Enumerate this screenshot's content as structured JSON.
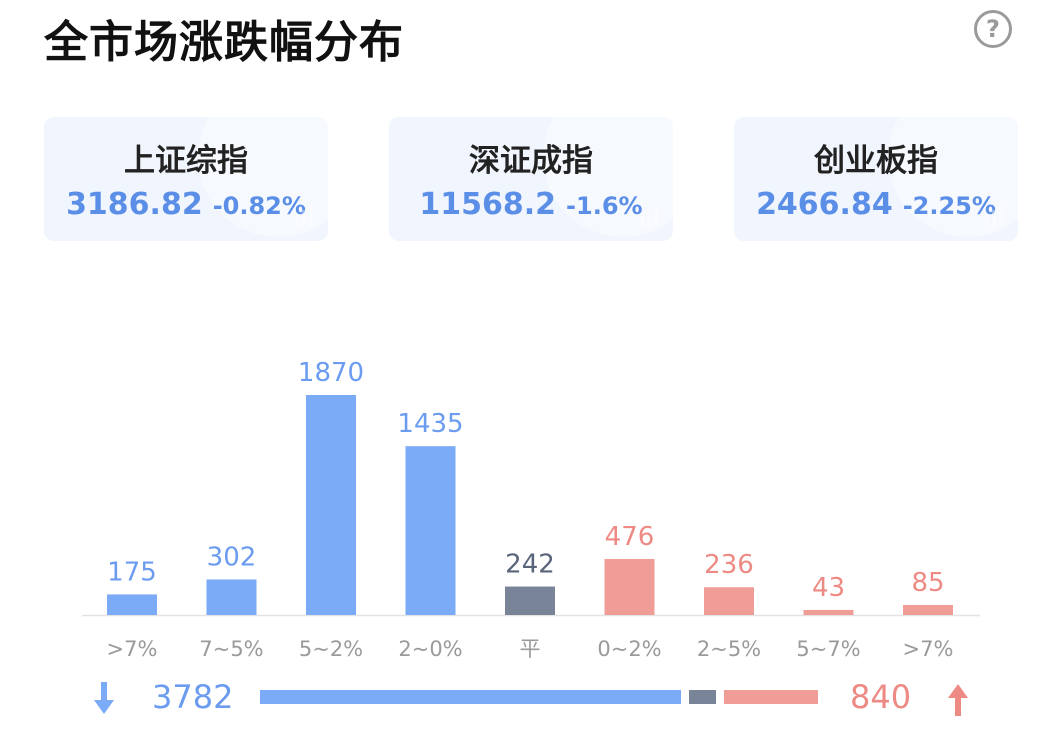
{
  "header": {
    "title": "全市场涨跌幅分布",
    "help_icon": "?"
  },
  "indices": [
    {
      "name": "上证综指",
      "price": "3186.82",
      "change": "-0.82%"
    },
    {
      "name": "深证成指",
      "price": "11568.2",
      "change": "-1.6%"
    },
    {
      "name": "创业板指",
      "price": "2466.84",
      "change": "-2.25%"
    }
  ],
  "chart_data": {
    "type": "bar",
    "categories": [
      ">7%",
      "7~5%",
      "5~2%",
      "2~0%",
      "平",
      "0~2%",
      "2~5%",
      "5~7%",
      ">7%"
    ],
    "values": [
      175,
      302,
      1870,
      1435,
      242,
      476,
      236,
      43,
      85
    ],
    "groups": [
      "down",
      "down",
      "down",
      "down",
      "flat",
      "up",
      "up",
      "up",
      "up"
    ],
    "ylim": [
      0,
      1870
    ],
    "grid": false,
    "colors": {
      "down": "#7baaf7",
      "flat": "#7a8499",
      "up": "#f09d98",
      "down_label": "#6b9cf0",
      "flat_label": "#59657a",
      "up_label": "#ee8a84"
    }
  },
  "summary": {
    "down_total": "3782",
    "up_total": "840",
    "down_count": 3782,
    "flat_count": 242,
    "up_count": 840
  }
}
